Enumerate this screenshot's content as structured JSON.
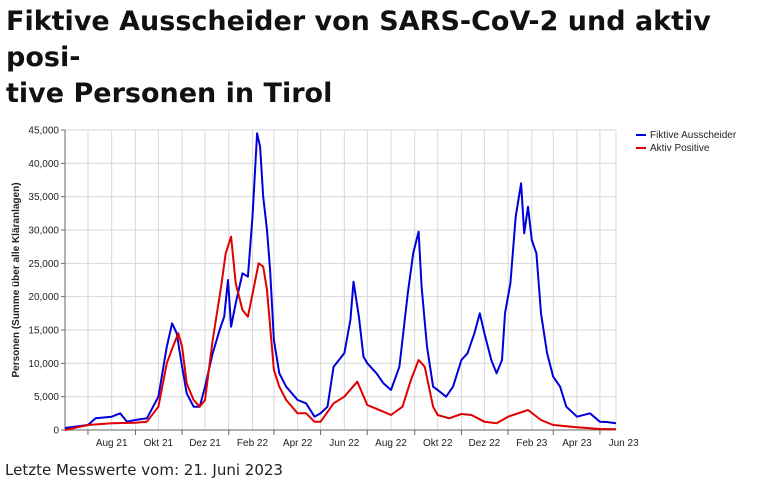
{
  "title_lines": [
    "Fiktive Ausscheider von SARS-CoV-2 und aktiv posi-",
    "tive Personen in Tirol"
  ],
  "footer": "Letzte Messwerte vom: 21. Juni 2023",
  "chart_data": {
    "type": "line",
    "title": "Fiktive Ausscheider von SARS-CoV-2 und aktiv positive Personen in Tirol",
    "xlabel": "",
    "ylabel": "Personen (Summe über alle Kläranlagen)",
    "xlim": [
      "2021-06-01",
      "2023-05-22"
    ],
    "ylim": [
      0,
      45000
    ],
    "yticks": [
      0,
      5000,
      10000,
      15000,
      20000,
      25000,
      30000,
      35000,
      40000,
      45000
    ],
    "ytick_labels": [
      "0",
      "5,000",
      "10,000",
      "15,000",
      "20,000",
      "25,000",
      "30,000",
      "35,000",
      "40,000",
      "45,000"
    ],
    "xticks": [
      "2021-08-01",
      "2021-10-01",
      "2021-12-01",
      "2022-02-01",
      "2022-04-01",
      "2022-06-01",
      "2022-08-01",
      "2022-10-01",
      "2022-12-01",
      "2023-02-01",
      "2023-04-01",
      "2023-06-01"
    ],
    "xtick_labels": [
      "Aug 21",
      "Okt 21",
      "Dez 21",
      "Feb 22",
      "Apr 22",
      "Jun 22",
      "Aug 22",
      "Okt 22",
      "Dez 22",
      "Feb 23",
      "Apr 23",
      "Jun 23"
    ],
    "grid": true,
    "legend_position": "top-right",
    "series": [
      {
        "name": "Fiktive Ausscheider",
        "color": "#0000dd",
        "x": [
          "2021-06-01",
          "2021-07-01",
          "2021-07-11",
          "2021-08-01",
          "2021-08-12",
          "2021-08-21",
          "2021-09-01",
          "2021-09-16",
          "2021-10-01",
          "2021-10-12",
          "2021-10-19",
          "2021-10-25",
          "2021-11-01",
          "2021-11-07",
          "2021-11-16",
          "2021-11-24",
          "2021-12-01",
          "2021-12-11",
          "2021-12-20",
          "2021-12-26",
          "2021-12-31",
          "2022-01-04",
          "2022-01-10",
          "2022-01-19",
          "2022-01-26",
          "2022-02-01",
          "2022-02-07",
          "2022-02-11",
          "2022-02-15",
          "2022-02-20",
          "2022-02-24",
          "2022-03-01",
          "2022-03-08",
          "2022-03-17",
          "2022-04-01",
          "2022-04-12",
          "2022-04-23",
          "2022-05-01",
          "2022-05-10",
          "2022-05-18",
          "2022-06-01",
          "2022-06-09",
          "2022-06-13",
          "2022-06-20",
          "2022-06-26",
          "2022-07-01",
          "2022-07-13",
          "2022-07-22",
          "2022-08-01",
          "2022-08-12",
          "2022-08-23",
          "2022-08-30",
          "2022-09-06",
          "2022-09-10",
          "2022-09-17",
          "2022-09-25",
          "2022-10-01",
          "2022-10-12",
          "2022-10-21",
          "2022-11-01",
          "2022-11-09",
          "2022-11-18",
          "2022-11-25",
          "2022-12-01",
          "2022-12-10",
          "2022-12-17",
          "2022-12-24",
          "2022-12-28",
          "2023-01-04",
          "2023-01-11",
          "2023-01-18",
          "2023-01-22",
          "2023-01-27",
          "2023-02-01",
          "2023-02-07",
          "2023-02-13",
          "2023-02-21",
          "2023-03-01",
          "2023-03-10",
          "2023-03-18",
          "2023-04-01",
          "2023-04-18",
          "2023-05-01",
          "2023-05-10",
          "2023-05-22"
        ],
        "values": [
          300,
          750,
          1750,
          2000,
          2500,
          1250,
          1500,
          1750,
          5000,
          12500,
          16000,
          14500,
          9500,
          5500,
          3500,
          3500,
          6500,
          11500,
          15000,
          17000,
          22500,
          15500,
          19000,
          23500,
          23000,
          32000,
          44500,
          42500,
          35000,
          30000,
          24000,
          13500,
          8500,
          6500,
          4500,
          4000,
          2000,
          2500,
          3500,
          9500,
          11500,
          16500,
          22250,
          17000,
          11000,
          10000,
          8500,
          7000,
          6000,
          9500,
          20500,
          26500,
          29750,
          21500,
          12500,
          6500,
          6000,
          5000,
          6500,
          10500,
          11500,
          14500,
          17500,
          14500,
          10500,
          8500,
          10500,
          17500,
          22000,
          32000,
          37000,
          29500,
          33500,
          28500,
          26500,
          17500,
          11500,
          8000,
          6500,
          3500,
          2000,
          2500,
          1250,
          1200,
          1000
        ]
      },
      {
        "name": "Aktiv Positive",
        "color": "#e00000",
        "x": [
          "2021-06-01",
          "2021-07-01",
          "2021-08-01",
          "2021-09-01",
          "2021-09-16",
          "2021-10-01",
          "2021-10-12",
          "2021-10-20",
          "2021-10-27",
          "2021-11-01",
          "2021-11-07",
          "2021-11-16",
          "2021-11-24",
          "2021-12-01",
          "2021-12-11",
          "2021-12-22",
          "2021-12-28",
          "2022-01-04",
          "2022-01-10",
          "2022-01-19",
          "2022-01-26",
          "2022-02-03",
          "2022-02-09",
          "2022-02-15",
          "2022-02-20",
          "2022-03-01",
          "2022-03-08",
          "2022-03-17",
          "2022-04-01",
          "2022-04-12",
          "2022-04-23",
          "2022-05-01",
          "2022-05-18",
          "2022-06-01",
          "2022-06-18",
          "2022-07-01",
          "2022-07-22",
          "2022-08-01",
          "2022-08-16",
          "2022-08-27",
          "2022-09-06",
          "2022-09-14",
          "2022-09-25",
          "2022-10-01",
          "2022-10-16",
          "2022-11-01",
          "2022-11-14",
          "2022-12-01",
          "2022-12-17",
          "2023-01-01",
          "2023-01-27",
          "2023-02-13",
          "2023-03-01",
          "2023-04-01",
          "2023-05-01",
          "2023-05-22"
        ],
        "values": [
          0,
          750,
          1000,
          1100,
          1250,
          3500,
          10000,
          12500,
          14500,
          12500,
          7000,
          4500,
          3500,
          4500,
          13500,
          21500,
          26500,
          29000,
          22000,
          18000,
          17000,
          21500,
          25000,
          24500,
          21000,
          9000,
          6500,
          4500,
          2500,
          2500,
          1250,
          1250,
          4000,
          5000,
          7250,
          3750,
          2750,
          2250,
          3500,
          7500,
          10500,
          9500,
          3500,
          2250,
          1750,
          2400,
          2250,
          1250,
          1000,
          2000,
          3000,
          1500,
          750,
          400,
          150,
          100
        ]
      }
    ]
  }
}
